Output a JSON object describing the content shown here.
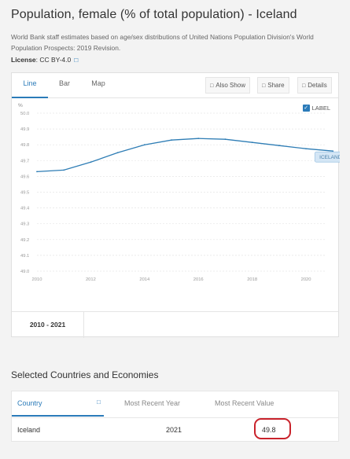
{
  "page": {
    "title": "Population, female (% of total population) - Iceland",
    "description": "World Bank staff estimates based on age/sex distributions of United Nations Population Division's World Population Prospects: 2019 Revision.",
    "license_label": "License",
    "license_value": ": CC BY-4.0",
    "license_icon": "external-link-icon"
  },
  "tabs": [
    {
      "label": "Line",
      "active": true
    },
    {
      "label": "Bar",
      "active": false
    },
    {
      "label": "Map",
      "active": false
    }
  ],
  "toolbar": {
    "also_show": "Also Show",
    "share": "Share",
    "details": "Details"
  },
  "chart_toggle": {
    "label": "LABEL",
    "checked": true
  },
  "chart_data": {
    "type": "line",
    "ylabel": "%",
    "ylim": [
      49.0,
      50.0
    ],
    "yticks": [
      "50.0",
      "49.9",
      "49.8",
      "49.7",
      "49.6",
      "49.5",
      "49.4",
      "49.3",
      "49.2",
      "49.1",
      "49.0"
    ],
    "xticks": [
      "2010",
      "2012",
      "2014",
      "2016",
      "2018",
      "2020"
    ],
    "grid": true,
    "series": [
      {
        "name": "ICELAND",
        "color": "#2e7db5",
        "x": [
          2010,
          2011,
          2012,
          2013,
          2014,
          2015,
          2016,
          2017,
          2018,
          2019,
          2020,
          2021
        ],
        "values": [
          49.63,
          49.64,
          49.69,
          49.75,
          49.8,
          49.83,
          49.84,
          49.835,
          49.815,
          49.795,
          49.775,
          49.76
        ]
      }
    ]
  },
  "range": "2010 - 2021",
  "table": {
    "section_title": "Selected Countries and Economies",
    "headers": [
      "Country",
      "Most Recent Year",
      "Most Recent Value"
    ],
    "sort_icon": "sort-icon",
    "rows": [
      {
        "country": "Iceland",
        "year": "2021",
        "value": "49.8"
      }
    ],
    "highlight_color": "#c9222b"
  }
}
